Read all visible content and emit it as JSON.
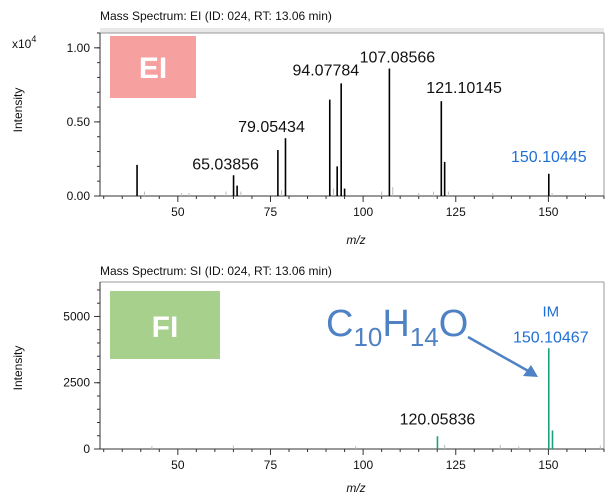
{
  "chart_data": [
    {
      "type": "bar",
      "title": "Mass Spectrum: EI (ID: 024, RT: 13.06 min)",
      "badge": "EI",
      "badge_color": "#f7a0a0",
      "xlabel": "m/z",
      "ylabel": "Intensity",
      "scale_prefix": "x10",
      "scale_exp": "4",
      "xlim": [
        29,
        165
      ],
      "ylim": [
        0,
        1.1
      ],
      "x_ticks": [
        50,
        75,
        100,
        125,
        150
      ],
      "y_ticks": [
        0.0,
        0.5,
        1.0
      ],
      "y_tick_labels": [
        "0.00",
        "0.50",
        "1.00"
      ],
      "bar_color": "#000000",
      "peaks": [
        {
          "x": 39.0,
          "y": 0.21
        },
        {
          "x": 65.04,
          "y": 0.14
        },
        {
          "x": 66.0,
          "y": 0.07
        },
        {
          "x": 77.0,
          "y": 0.31
        },
        {
          "x": 79.05,
          "y": 0.39
        },
        {
          "x": 91.0,
          "y": 0.65
        },
        {
          "x": 93.0,
          "y": 0.2
        },
        {
          "x": 94.08,
          "y": 0.76
        },
        {
          "x": 95.0,
          "y": 0.05
        },
        {
          "x": 107.09,
          "y": 0.86
        },
        {
          "x": 121.1,
          "y": 0.64
        },
        {
          "x": 122.0,
          "y": 0.23
        },
        {
          "x": 150.1,
          "y": 0.15
        }
      ],
      "minor_peaks": [
        {
          "x": 41,
          "y": 0.03
        },
        {
          "x": 51,
          "y": 0.02
        },
        {
          "x": 53,
          "y": 0.02
        },
        {
          "x": 63,
          "y": 0.03
        },
        {
          "x": 67,
          "y": 0.03
        },
        {
          "x": 78,
          "y": 0.04
        },
        {
          "x": 92,
          "y": 0.05
        },
        {
          "x": 105,
          "y": 0.03
        },
        {
          "x": 108,
          "y": 0.06
        },
        {
          "x": 115,
          "y": 0.02
        },
        {
          "x": 119,
          "y": 0.03
        },
        {
          "x": 123,
          "y": 0.03
        },
        {
          "x": 135,
          "y": 0.02
        },
        {
          "x": 151,
          "y": 0.02
        },
        {
          "x": 160,
          "y": 0.02
        }
      ],
      "annotations": [
        {
          "text": "65.03856",
          "x": 65.04,
          "y": 0.14,
          "color": "#111111"
        },
        {
          "text": "79.05434",
          "x": 79.05,
          "y": 0.39,
          "color": "#111111"
        },
        {
          "text": "94.07784",
          "x": 94.08,
          "y": 0.76,
          "color": "#111111"
        },
        {
          "text": "107.08566",
          "x": 107.09,
          "y": 0.86,
          "color": "#111111"
        },
        {
          "text": "121.10145",
          "x": 121.1,
          "y": 0.64,
          "color": "#111111"
        },
        {
          "text": "150.10445",
          "x": 150.1,
          "y": 0.15,
          "color": "#1f6fd6"
        }
      ]
    },
    {
      "type": "bar",
      "title": "Mass Spectrum: SI (ID: 024, RT: 13.06 min)",
      "badge": "FI",
      "badge_color": "#a8d08d",
      "xlabel": "m/z",
      "ylabel": "Intensity",
      "xlim": [
        29,
        165
      ],
      "ylim": [
        0,
        6300
      ],
      "x_ticks": [
        50,
        75,
        100,
        125,
        150
      ],
      "y_ticks": [
        0,
        2500,
        5000
      ],
      "y_tick_labels": [
        "0",
        "2500",
        "5000"
      ],
      "bar_color": "#1aa37a",
      "peaks": [
        {
          "x": 120.06,
          "y": 480
        },
        {
          "x": 150.1,
          "y": 3800
        },
        {
          "x": 151.1,
          "y": 700
        }
      ],
      "minor_peaks": [
        {
          "x": 43,
          "y": 120
        },
        {
          "x": 65,
          "y": 130
        },
        {
          "x": 98,
          "y": 110
        },
        {
          "x": 122,
          "y": 150
        },
        {
          "x": 137,
          "y": 150
        },
        {
          "x": 142,
          "y": 100
        },
        {
          "x": 164,
          "y": 130
        }
      ],
      "annotations": [
        {
          "text": "120.05836",
          "x": 120.06,
          "y": 480,
          "color": "#111111"
        },
        {
          "text": "150.10467",
          "x": 150.1,
          "y": 3800,
          "color": "#1f6fd6"
        },
        {
          "text": "IM",
          "x": 150.1,
          "y": 3800,
          "color": "#1f6fd6"
        }
      ],
      "formula": {
        "C": "C",
        "n1": "10",
        "H": "H",
        "n2": "14",
        "O": "O",
        "color": "#4f82c4"
      }
    }
  ]
}
